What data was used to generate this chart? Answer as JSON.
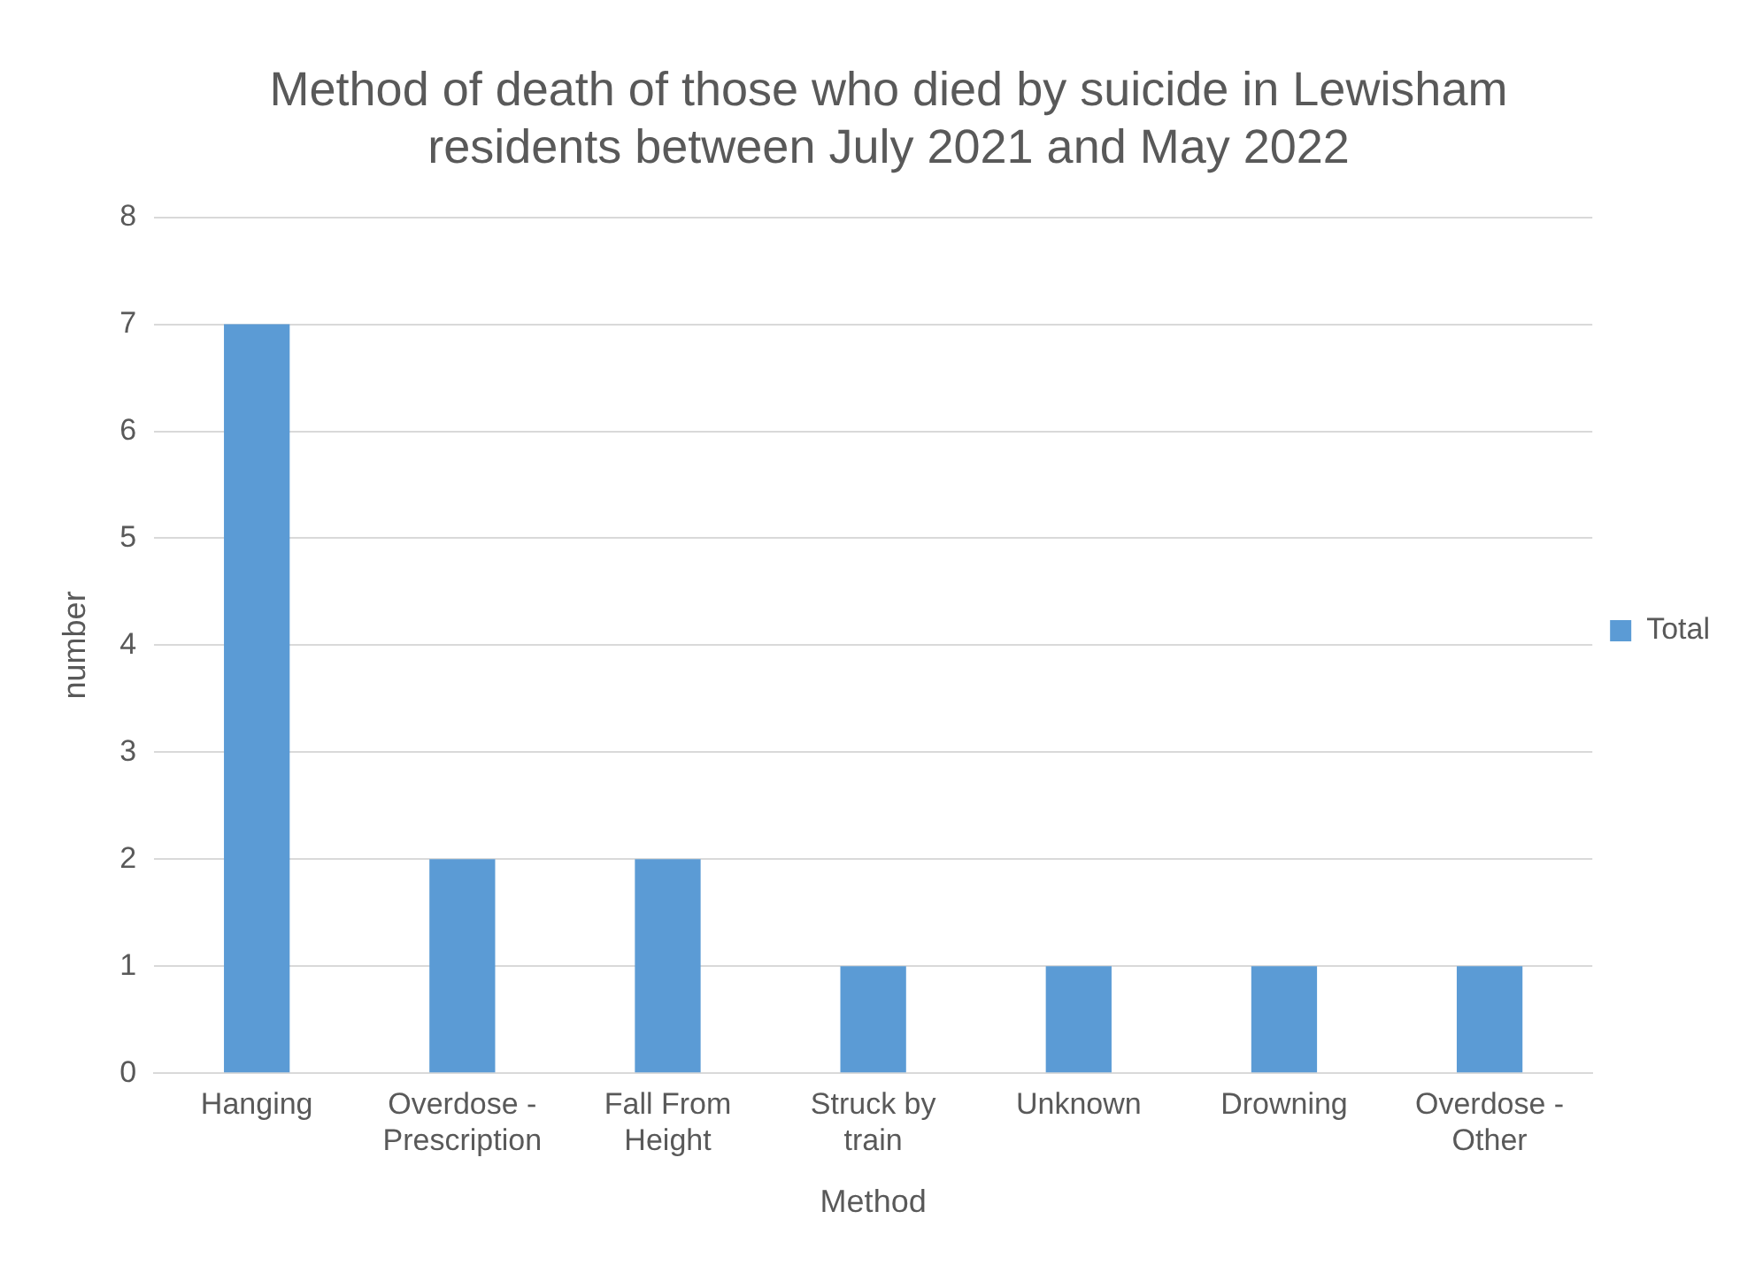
{
  "chart_data": {
    "type": "bar",
    "title": "Method of death of those who died by suicide in Lewisham residents between July 2021 and May 2022",
    "xlabel": "Method",
    "ylabel": "number",
    "categories": [
      "Hanging",
      "Overdose - Prescription",
      "Fall From Height",
      "Struck by train",
      "Unknown",
      "Drowning",
      "Overdose - Other"
    ],
    "series": [
      {
        "name": "Total",
        "color": "#5b9bd5",
        "values": [
          7,
          2,
          2,
          1,
          1,
          1,
          1
        ]
      }
    ],
    "ylim": [
      0,
      8
    ],
    "yticks": [
      0,
      1,
      2,
      3,
      4,
      5,
      6,
      7,
      8
    ],
    "grid": "y",
    "legend": "right"
  }
}
